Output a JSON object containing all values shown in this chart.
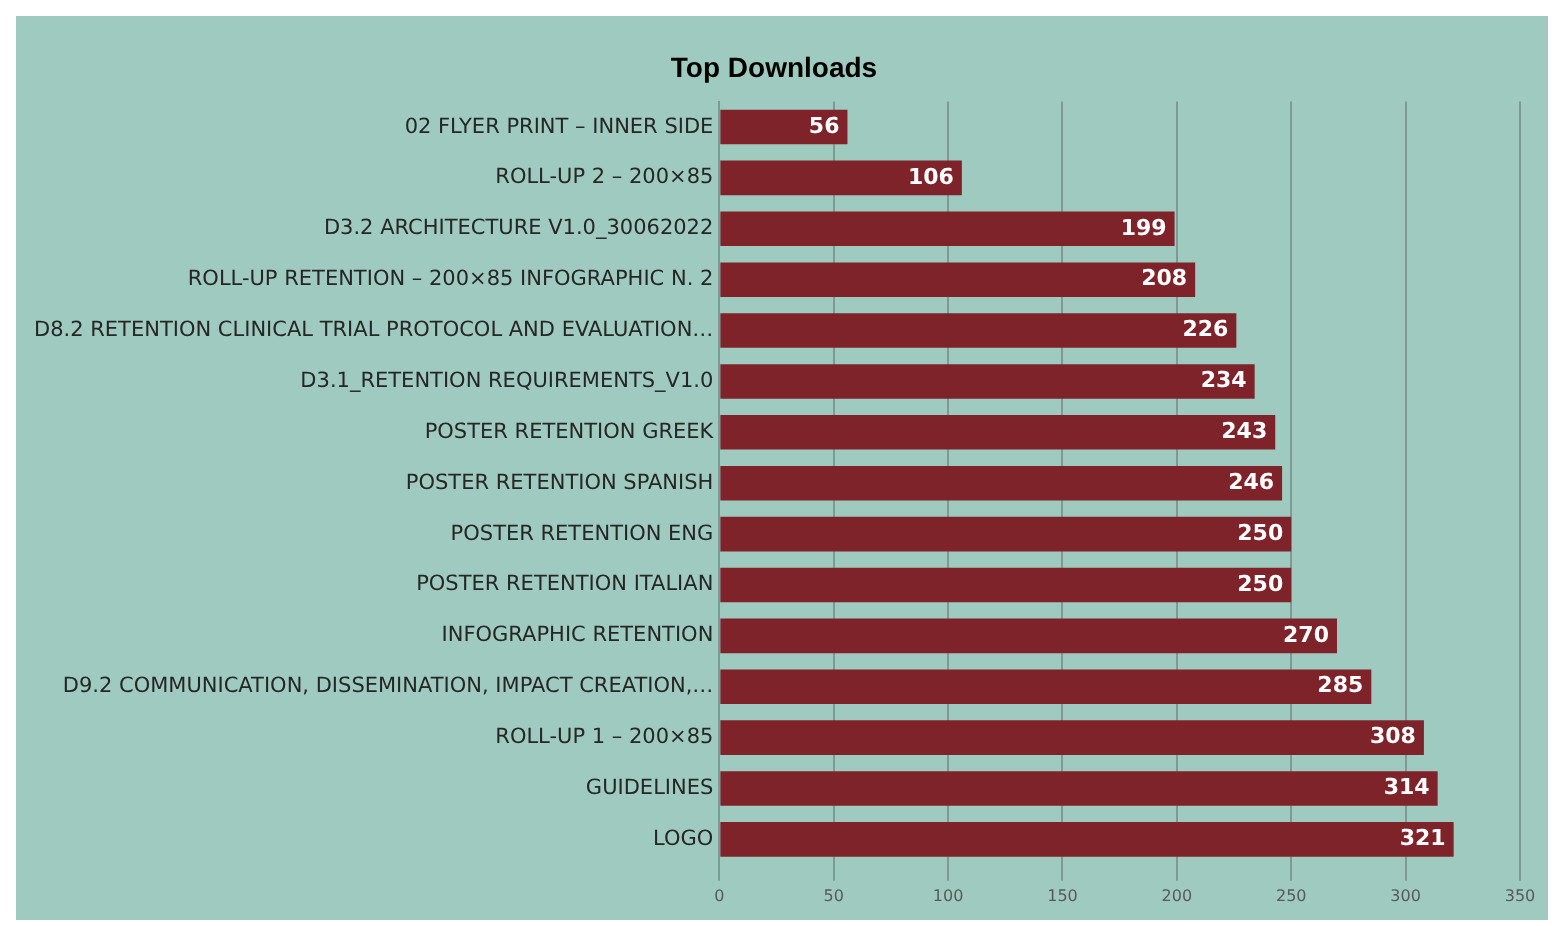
{
  "chart_data": {
    "type": "bar",
    "title": "Top Downloads",
    "orientation": "horizontal",
    "categories": [
      "02 FLYER PRINT – INNER SIDE",
      "ROLL-UP 2 – 200×85",
      "D3.2 ARCHITECTURE V1.0_30062022",
      "ROLL-UP RETENTION – 200×85 INFOGRAPHIC N. 2",
      "D8.2 RETENTION CLINICAL TRIAL PROTOCOL AND EVALUATION…",
      "D3.1_RETENTION REQUIREMENTS_V1.0",
      "POSTER RETENTION GREEK",
      "POSTER RETENTION SPANISH",
      "POSTER RETENTION ENG",
      "POSTER RETENTION ITALIAN",
      "INFOGRAPHIC RETENTION",
      "D9.2 COMMUNICATION, DISSEMINATION, IMPACT CREATION,…",
      "ROLL-UP 1 – 200×85",
      "GUIDELINES",
      "LOGO"
    ],
    "values": [
      56,
      106,
      199,
      208,
      226,
      234,
      243,
      246,
      250,
      250,
      270,
      285,
      308,
      314,
      321
    ],
    "color": "#7f232b",
    "xlim": [
      0,
      350
    ],
    "xticks": [
      0,
      50,
      100,
      150,
      200,
      250,
      300,
      350
    ],
    "grid": "x",
    "data_labels": true
  }
}
